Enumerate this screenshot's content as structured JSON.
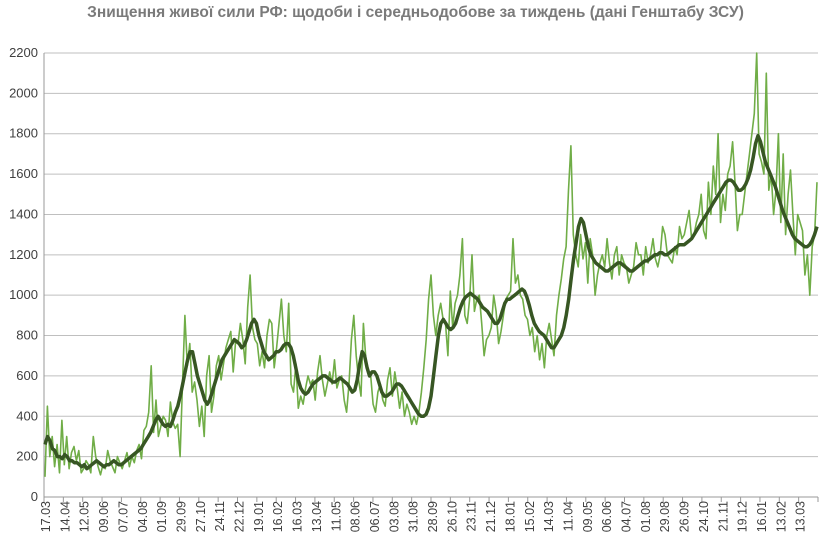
{
  "chart_data": {
    "type": "line",
    "title": "Знищення живої сили РФ: щодоби і середньодобове за тиждень (дані Генштабу ЗСУ)",
    "xlabel": "",
    "ylabel": "",
    "ylim": [
      0,
      2200
    ],
    "yticks": [
      0,
      200,
      400,
      600,
      800,
      1000,
      1200,
      1400,
      1600,
      1800,
      2000,
      2200
    ],
    "xtick_labels": [
      "17.03",
      "14.04",
      "12.05",
      "09.06",
      "07.07",
      "04.08",
      "01.09",
      "29.09",
      "27.10",
      "24.11",
      "22.12",
      "19.01",
      "16.02",
      "16.03",
      "13.04",
      "11.05",
      "08.06",
      "06.07",
      "03.08",
      "31.08",
      "28.09",
      "26.10",
      "23.11",
      "21.12",
      "18.01",
      "15.02",
      "14.03",
      "11.04",
      "09.05",
      "06.06",
      "04.07",
      "01.08",
      "29.08",
      "26.09",
      "24.10",
      "21.11",
      "19.12",
      "16.01",
      "13.02",
      "13.03"
    ],
    "grid": true,
    "legend": "none",
    "colors": {
      "daily": "#70ad47",
      "weekly_avg": "#375623"
    },
    "series": [
      {
        "role": "daily",
        "values": [
          100,
          450,
          200,
          300,
          150,
          260,
          120,
          380,
          160,
          300,
          140,
          220,
          250,
          180,
          230,
          120,
          140,
          180,
          160,
          120,
          300,
          200,
          150,
          110,
          160,
          140,
          230,
          180,
          150,
          120,
          200,
          170,
          140,
          180,
          220,
          150,
          200,
          170,
          230,
          260,
          190,
          330,
          350,
          420,
          650,
          320,
          480,
          300,
          350,
          400,
          380,
          300,
          470,
          370,
          340,
          360,
          200,
          560,
          900,
          650,
          760,
          520,
          570,
          480,
          350,
          450,
          300,
          600,
          700,
          420,
          500,
          650,
          700,
          580,
          660,
          740,
          780,
          820,
          620,
          770,
          760,
          860,
          780,
          660,
          940,
          1100,
          840,
          780,
          760,
          650,
          720,
          640,
          800,
          880,
          860,
          640,
          740,
          860,
          980,
          800,
          720,
          960,
          560,
          520,
          660,
          440,
          500,
          460,
          540,
          600,
          560,
          580,
          480,
          620,
          700,
          580,
          500,
          560,
          620,
          560,
          680,
          540,
          580,
          600,
          480,
          420,
          560,
          780,
          900,
          700,
          580,
          500,
          860,
          680,
          620,
          600,
          460,
          420,
          520,
          560,
          480,
          450,
          580,
          640,
          500,
          620,
          540,
          440,
          520,
          400,
          460,
          420,
          360,
          400,
          360,
          420,
          520,
          640,
          780,
          980,
          1100,
          900,
          800,
          900,
          960,
          880,
          860,
          700,
          1020,
          840,
          960,
          1000,
          1100,
          1280,
          900,
          860,
          980,
          1200,
          920,
          980,
          1000,
          860,
          700,
          780,
          800,
          840,
          1000,
          920,
          760,
          820,
          900,
          980,
          1000,
          1020,
          1280,
          1060,
          1100,
          1000,
          980,
          900,
          880,
          800,
          840,
          720,
          800,
          680,
          760,
          640,
          800,
          860,
          780,
          700,
          900,
          1000,
          1080,
          1180,
          1240,
          1520,
          1740,
          1300,
          1200,
          1140,
          1300,
          1180,
          1260,
          1060,
          1280,
          1200,
          1000,
          1100,
          1160,
          1200,
          1140,
          1280,
          1160,
          1080,
          1200,
          1240,
          1100,
          1200,
          1160,
          1140,
          1060,
          1100,
          1140,
          1260,
          1200,
          1200,
          1100,
          1240,
          1160,
          1200,
          1280,
          1180,
          1140,
          1200,
          1340,
          1300,
          1200,
          1180,
          1160,
          1240,
          1200,
          1340,
          1280,
          1300,
          1360,
          1420,
          1280,
          1300,
          1360,
          1400,
          1500,
          1320,
          1280,
          1560,
          1400,
          1640,
          1500,
          1800,
          1360,
          1500,
          1420,
          1600,
          1640,
          1760,
          1560,
          1320,
          1400,
          1400,
          1500,
          1600,
          1700,
          1800,
          1900,
          2200,
          1700,
          1660,
          1600,
          2100,
          1520,
          1600,
          1400,
          1520,
          1800,
          1360,
          1700,
          1300,
          1500,
          1620,
          1400,
          1200,
          1400,
          1360,
          1320,
          1100,
          1200,
          1000,
          1240,
          1300,
          1560
        ]
      },
      {
        "role": "weekly_avg",
        "values": [
          260,
          300,
          280,
          240,
          230,
          200,
          200,
          190,
          210,
          200,
          180,
          180,
          170,
          170,
          160,
          150,
          160,
          140,
          150,
          160,
          170,
          180,
          170,
          160,
          150,
          160,
          160,
          170,
          180,
          170,
          160,
          160,
          170,
          180,
          190,
          200,
          210,
          220,
          230,
          240,
          260,
          280,
          300,
          320,
          350,
          380,
          400,
          380,
          360,
          350,
          360,
          350,
          380,
          420,
          450,
          500,
          560,
          620,
          680,
          720,
          720,
          660,
          600,
          560,
          520,
          480,
          460,
          480,
          520,
          560,
          600,
          640,
          680,
          700,
          720,
          740,
          760,
          780,
          770,
          760,
          740,
          750,
          780,
          820,
          860,
          880,
          860,
          800,
          760,
          720,
          700,
          680,
          690,
          700,
          720,
          720,
          730,
          750,
          760,
          760,
          740,
          700,
          640,
          580,
          540,
          520,
          510,
          520,
          540,
          560,
          570,
          580,
          590,
          600,
          600,
          590,
          580,
          570,
          570,
          580,
          590,
          580,
          570,
          560,
          540,
          520,
          530,
          580,
          660,
          720,
          700,
          640,
          600,
          620,
          620,
          600,
          560,
          520,
          500,
          500,
          510,
          520,
          540,
          560,
          560,
          550,
          530,
          510,
          490,
          470,
          450,
          430,
          410,
          400,
          400,
          410,
          440,
          500,
          600,
          700,
          800,
          860,
          880,
          860,
          840,
          830,
          840,
          860,
          900,
          940,
          970,
          990,
          1000,
          1010,
          1000,
          990,
          980,
          960,
          940,
          930,
          920,
          900,
          880,
          860,
          860,
          880,
          920,
          960,
          980,
          980,
          990,
          1000,
          1010,
          1020,
          1030,
          1020,
          990,
          950,
          900,
          860,
          840,
          820,
          810,
          800,
          780,
          760,
          740,
          740,
          760,
          780,
          800,
          840,
          900,
          980,
          1080,
          1180,
          1260,
          1340,
          1380,
          1360,
          1300,
          1240,
          1200,
          1180,
          1160,
          1150,
          1140,
          1130,
          1120,
          1120,
          1130,
          1140,
          1150,
          1160,
          1160,
          1150,
          1140,
          1130,
          1120,
          1120,
          1130,
          1140,
          1150,
          1160,
          1170,
          1170,
          1180,
          1190,
          1200,
          1200,
          1210,
          1210,
          1200,
          1200,
          1210,
          1220,
          1230,
          1240,
          1250,
          1250,
          1250,
          1260,
          1270,
          1280,
          1300,
          1320,
          1340,
          1360,
          1380,
          1400,
          1420,
          1440,
          1460,
          1480,
          1500,
          1520,
          1540,
          1560,
          1570,
          1570,
          1560,
          1540,
          1520,
          1520,
          1530,
          1550,
          1580,
          1620,
          1680,
          1750,
          1790,
          1760,
          1710,
          1660,
          1630,
          1600,
          1570,
          1540,
          1500,
          1460,
          1420,
          1390,
          1360,
          1330,
          1300,
          1280,
          1270,
          1260,
          1250,
          1240,
          1240,
          1250,
          1270,
          1300,
          1340
        ]
      }
    ]
  }
}
